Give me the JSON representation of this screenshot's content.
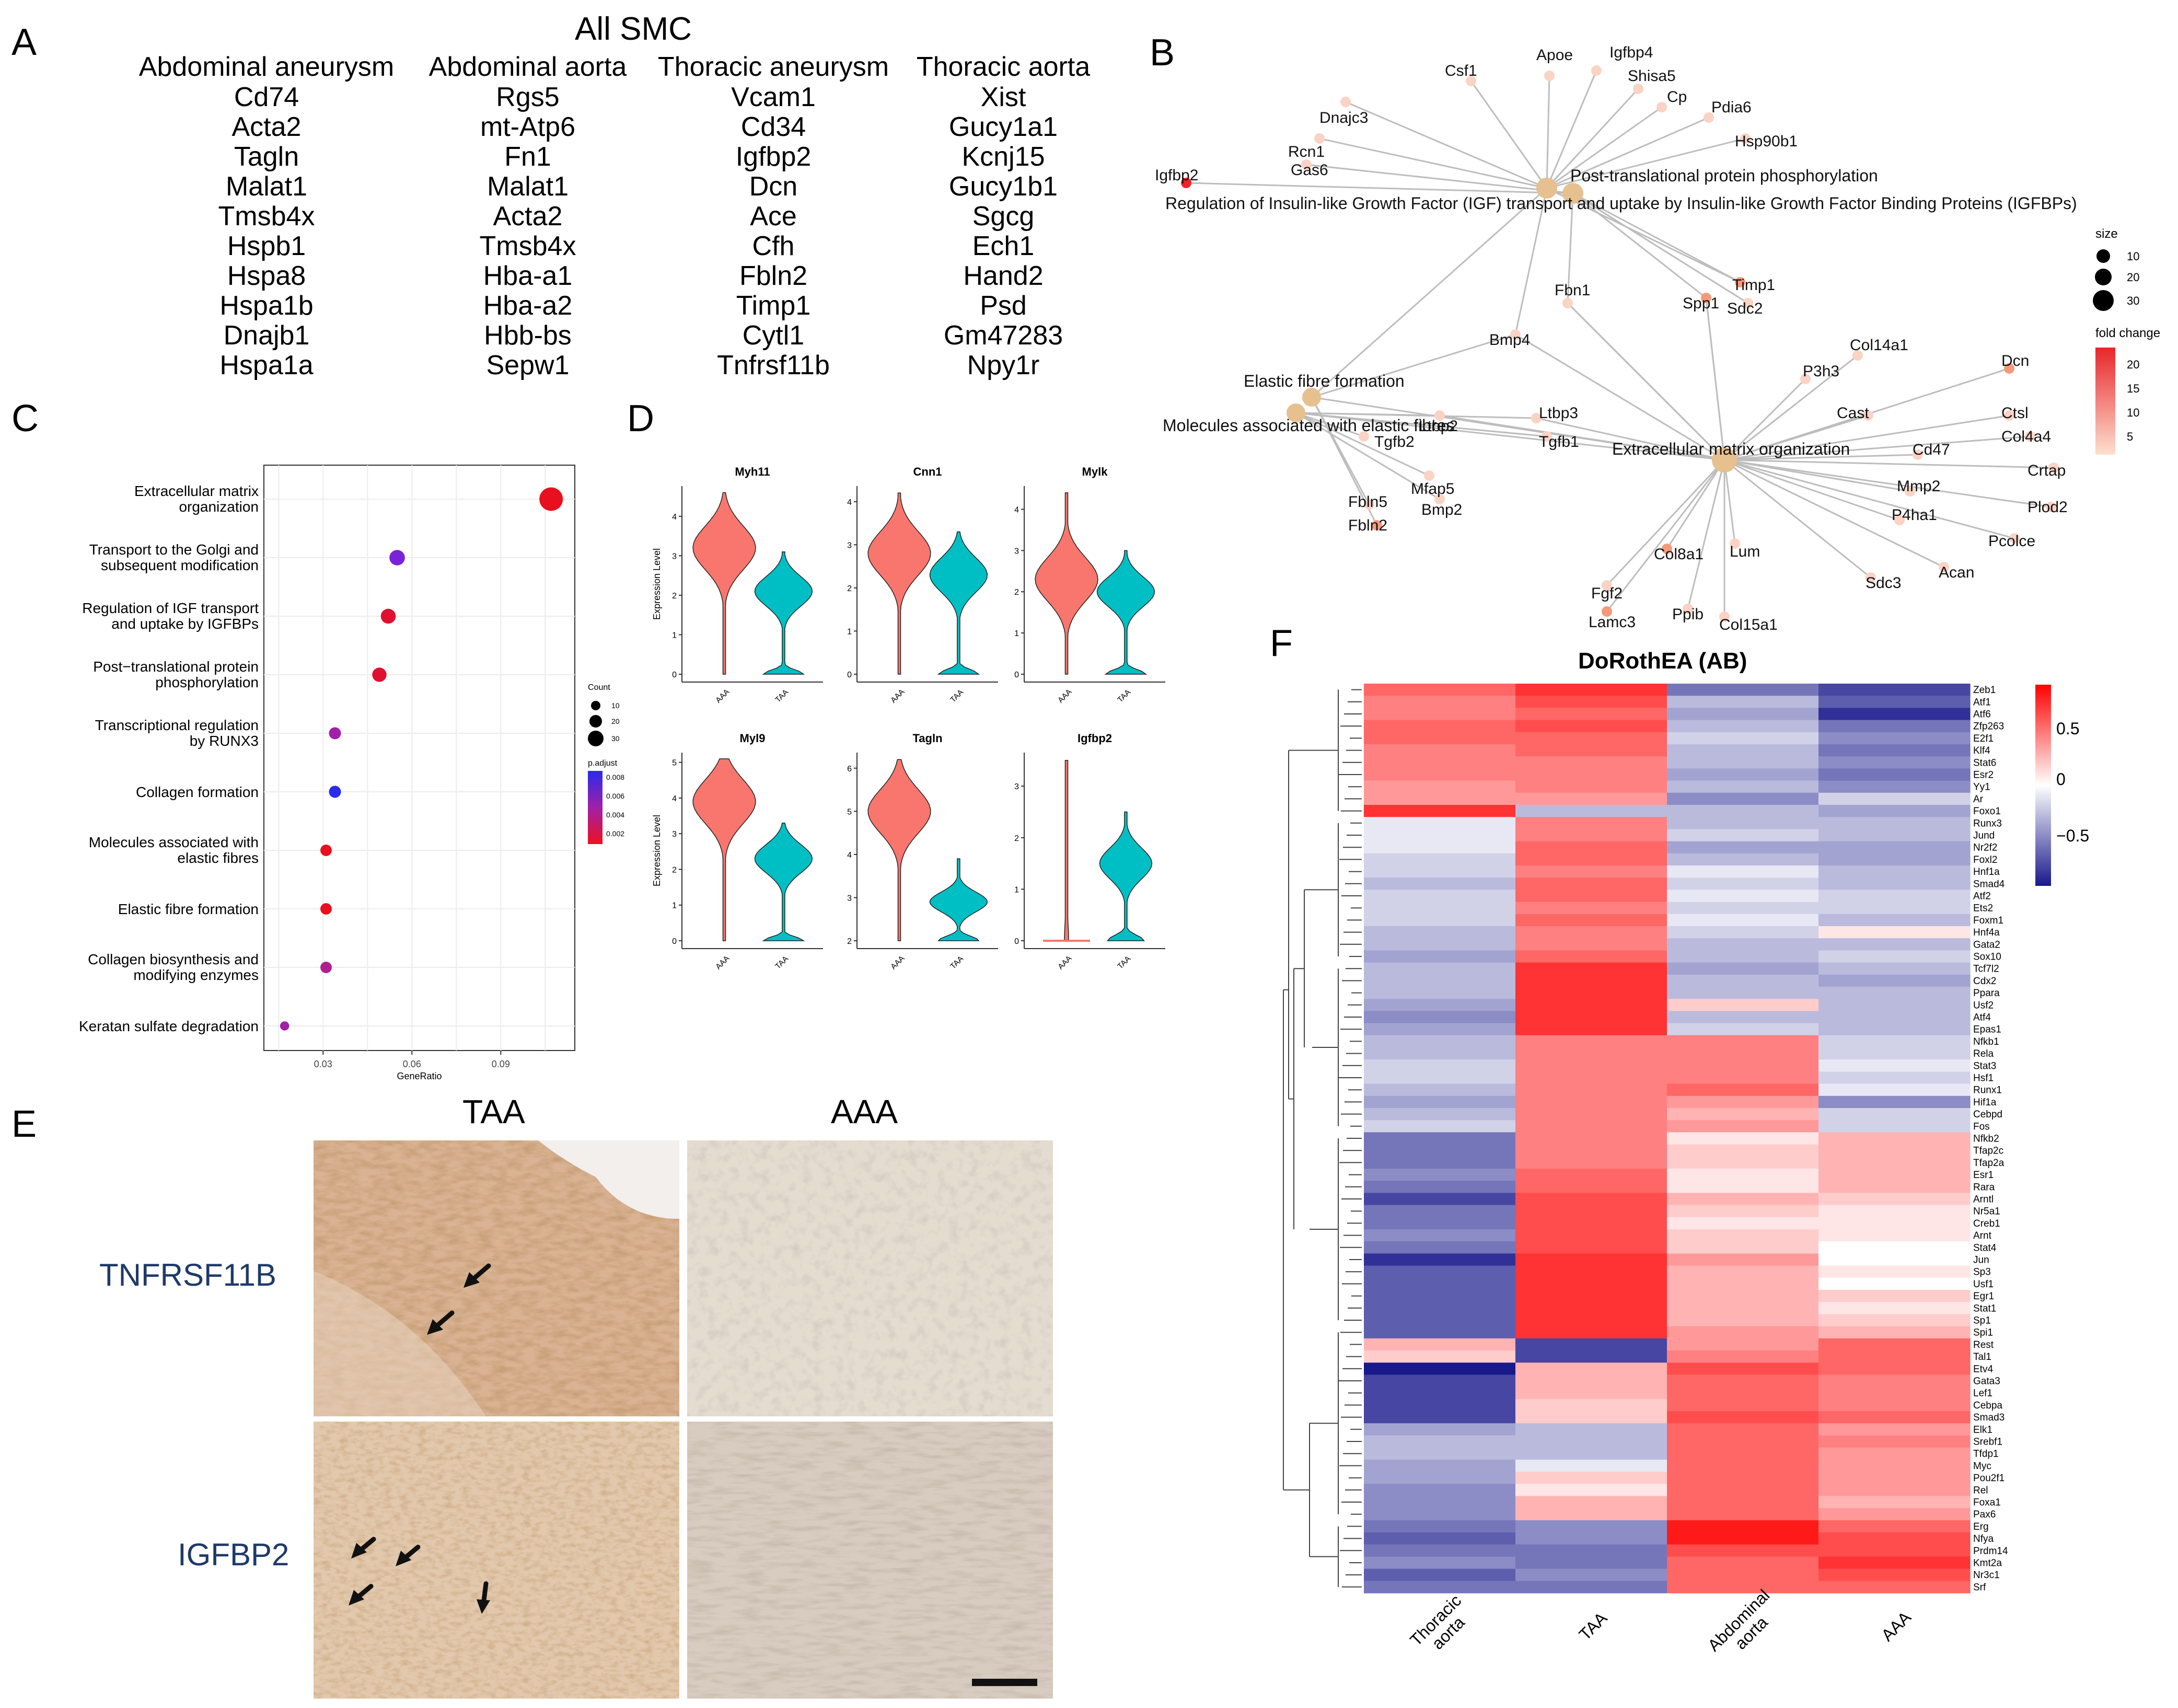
{
  "panelA": {
    "letter": "A",
    "title": "All SMC",
    "columns": [
      {
        "name": "Abdominal aneurysm",
        "genes": [
          "Cd74",
          "Acta2",
          "Tagln",
          "Malat1",
          "Tmsb4x",
          "Hspb1",
          "Hspa8",
          "Hspa1b",
          "Dnajb1",
          "Hspa1a"
        ]
      },
      {
        "name": "Abdominal aorta",
        "genes": [
          "Rgs5",
          "mt-Atp6",
          "Fn1",
          "Malat1",
          "Acta2",
          "Tmsb4x",
          "Hba-a1",
          "Hba-a2",
          "Hbb-bs",
          "Sepw1"
        ]
      },
      {
        "name": "Thoracic aneurysm",
        "genes": [
          "Vcam1",
          "Cd34",
          "Igfbp2",
          "Dcn",
          "Ace",
          "Cfh",
          "Fbln2",
          "Timp1",
          "Cytl1",
          "Tnfrsf11b"
        ]
      },
      {
        "name": "Thoracic aorta",
        "genes": [
          "Xist",
          "Gucy1a1",
          "Kcnj15",
          "Gucy1b1",
          "Sgcg",
          "Ech1",
          "Hand2",
          "Psd",
          "Gm47283",
          "Npy1r"
        ]
      }
    ]
  },
  "panelB": {
    "letter": "B",
    "hubs": [
      "Post-translational protein phosphorylation",
      "Regulation of Insulin-like Growth Factor (IGF) transport and uptake by Insulin-like Growth Factor Binding Proteins (IGFBPs)",
      "Elastic fibre formation",
      "Molecules associated with elastic fibres",
      "Extracellular matrix organization"
    ],
    "genes": [
      "Csf1",
      "Apoe",
      "Igfbp4",
      "Shisa5",
      "Cp",
      "Pdia6",
      "Hsp90b1",
      "Dnajc3",
      "Rcn1",
      "Igfbp2",
      "Gas6",
      "Timp1",
      "Fbn1",
      "Spp1",
      "Sdc2",
      "Bmp4",
      "Ltbp3",
      "Ltbp2",
      "Tgfb2",
      "Tgfb1",
      "Mfap5",
      "Fbln5",
      "Fbln2",
      "Bmp2",
      "P3h3",
      "Col14a1",
      "Dcn",
      "Cast",
      "Ctsl",
      "Cd47",
      "Col4a4",
      "Crtap",
      "Mmp2",
      "P4ha1",
      "Plod2",
      "Pcolce",
      "Acan",
      "Sdc3",
      "Lum",
      "Col8a1",
      "Fgf2",
      "Lamc3",
      "Ppib",
      "Col15a1"
    ],
    "legend": {
      "size_title": "size",
      "size_values": [
        "10",
        "20",
        "30"
      ],
      "fc_title": "fold change",
      "fc_values": [
        "20",
        "15",
        "10",
        "5"
      ],
      "fc_low": "#fde0d0",
      "fc_high": "#e8262a"
    }
  },
  "panelC": {
    "letter": "C",
    "chart_data": {
      "type": "scatter",
      "xlabel": "GeneRatio",
      "xticks": [
        "0.03",
        "0.06",
        "0.09"
      ],
      "xlim": [
        0.01,
        0.115
      ],
      "terms": [
        {
          "label1": "Extracellular matrix",
          "label2": "organization",
          "gene_ratio": 0.107,
          "count": 30,
          "color": "#e8101e"
        },
        {
          "label1": "Transport to the Golgi and",
          "label2": "subsequent modification",
          "gene_ratio": 0.055,
          "count": 16,
          "color": "#7a22d8"
        },
        {
          "label1": "Regulation of IGF transport",
          "label2": "and uptake by IGFBPs",
          "gene_ratio": 0.052,
          "count": 15,
          "color": "#e01030"
        },
        {
          "label1": "Post−translational protein",
          "label2": "phosphorylation",
          "gene_ratio": 0.049,
          "count": 14,
          "color": "#e01030"
        },
        {
          "label1": "Transcriptional regulation",
          "label2": "by RUNX3",
          "gene_ratio": 0.034,
          "count": 10,
          "color": "#a020a8"
        },
        {
          "label1": "Collagen formation",
          "label2": "",
          "gene_ratio": 0.034,
          "count": 10,
          "color": "#2a2aee"
        },
        {
          "label1": "Molecules associated with",
          "label2": "elastic fibres",
          "gene_ratio": 0.031,
          "count": 9,
          "color": "#e8101e"
        },
        {
          "label1": "Elastic fibre formation",
          "label2": "",
          "gene_ratio": 0.031,
          "count": 9,
          "color": "#e8101e"
        },
        {
          "label1": "Collagen biosynthesis and",
          "label2": "modifying enzymes",
          "gene_ratio": 0.031,
          "count": 9,
          "color": "#b0208c"
        },
        {
          "label1": "Keratan sulfate degradation",
          "label2": "",
          "gene_ratio": 0.017,
          "count": 5,
          "color": "#a020a8"
        }
      ],
      "legend_count_title": "Count",
      "legend_count_values": [
        "10",
        "20",
        "30"
      ],
      "legend_padj_title": "p.adjust",
      "legend_padj_values": [
        "0.008",
        "0.006",
        "0.004",
        "0.002"
      ]
    }
  },
  "panelD": {
    "letter": "D",
    "ylabel": "Expression Level",
    "groups": [
      "AAA",
      "TAA"
    ],
    "colors": {
      "AAA": "#f8766d",
      "TAA": "#00bfc4"
    },
    "chart_data": {
      "type": "violin",
      "panels": [
        {
          "gene": "Myh11",
          "ymax": 4.7,
          "yticks": [
            "0",
            "1",
            "2",
            "3",
            "4"
          ],
          "AAA_median": 3.2,
          "TAA_median": 2.1
        },
        {
          "gene": "Cnn1",
          "ymax": 4.3,
          "yticks": [
            "0",
            "1",
            "2",
            "3",
            "4"
          ],
          "AAA_median": 2.8,
          "TAA_median": 2.3
        },
        {
          "gene": "Mylk",
          "ymax": 4.5,
          "yticks": [
            "0",
            "1",
            "2",
            "3",
            "4"
          ],
          "AAA_median": 2.3,
          "TAA_median": 2.0
        },
        {
          "gene": "Myl9",
          "ymax": 5.2,
          "yticks": [
            "0",
            "1",
            "2",
            "3",
            "4",
            "5"
          ],
          "AAA_median": 3.9,
          "TAA_median": 2.3
        },
        {
          "gene": "Tagln",
          "ymax": 6.3,
          "yticks": [
            "2",
            "3",
            "4",
            "5",
            "6"
          ],
          "AAA_median": 5.0,
          "TAA_median": 2.9
        },
        {
          "gene": "Igfbp2",
          "ymax": 3.6,
          "yticks": [
            "0",
            "1",
            "2",
            "3"
          ],
          "AAA_median": 0.0,
          "TAA_median": 1.5
        }
      ]
    }
  },
  "panelE": {
    "letter": "E",
    "col_titles": [
      "TAA",
      "AAA"
    ],
    "row_labels": [
      "TNFRSF11B",
      "IGFBP2"
    ]
  },
  "panelF": {
    "letter": "F",
    "title": "DoRothEA (AB)",
    "columns": [
      "Thoracic aorta",
      "TAA",
      "Abdominal aorta",
      "AAA"
    ],
    "colorbar": [
      "0.5",
      "0",
      "−0.5"
    ],
    "rows": [
      "Zeb1",
      "Atf1",
      "Atf6",
      "Zfp263",
      "E2f1",
      "Klf4",
      "Stat6",
      "Esr2",
      "Yy1",
      "Ar",
      "Foxo1",
      "Runx3",
      "Jund",
      "Nr2f2",
      "Foxl2",
      "Hnf1a",
      "Smad4",
      "Atf2",
      "Ets2",
      "Foxm1",
      "Hnf4a",
      "Gata2",
      "Sox10",
      "Tcf7l2",
      "Cdx2",
      "Ppara",
      "Usf2",
      "Atf4",
      "Epas1",
      "Nfkb1",
      "Rela",
      "Stat3",
      "Hsf1",
      "Runx1",
      "Hif1a",
      "Cebpd",
      "Fos",
      "Nfkb2",
      "Tfap2c",
      "Tfap2a",
      "Esr1",
      "Rara",
      "Arntl",
      "Nr5a1",
      "Creb1",
      "Arnt",
      "Stat4",
      "Jun",
      "Sp3",
      "Usf1",
      "Egr1",
      "Stat1",
      "Sp1",
      "Spi1",
      "Rest",
      "Tal1",
      "Etv4",
      "Gata3",
      "Lef1",
      "Cebpa",
      "Smad3",
      "Elk1",
      "Srebf1",
      "Tfdp1",
      "Myc",
      "Pou2f1",
      "Rel",
      "Foxa1",
      "Pax6",
      "Erg",
      "Nfya",
      "Prdm14",
      "Kmt2a",
      "Nr3c1",
      "Srf"
    ],
    "values": [
      [
        0.6,
        0.8,
        -0.6,
        -0.8
      ],
      [
        0.5,
        0.7,
        -0.3,
        -0.7
      ],
      [
        0.5,
        0.6,
        -0.4,
        -0.9
      ],
      [
        0.6,
        0.7,
        -0.3,
        -0.6
      ],
      [
        0.6,
        0.6,
        -0.2,
        -0.5
      ],
      [
        0.5,
        0.6,
        -0.3,
        -0.6
      ],
      [
        0.5,
        0.5,
        -0.3,
        -0.5
      ],
      [
        0.5,
        0.5,
        -0.4,
        -0.6
      ],
      [
        0.4,
        0.5,
        -0.3,
        -0.5
      ],
      [
        0.4,
        0.4,
        -0.5,
        -0.2
      ],
      [
        0.8,
        -0.3,
        -0.3,
        -0.4
      ],
      [
        -0.1,
        0.5,
        -0.3,
        -0.3
      ],
      [
        -0.1,
        0.5,
        -0.2,
        -0.3
      ],
      [
        -0.1,
        0.6,
        -0.4,
        -0.4
      ],
      [
        -0.2,
        0.6,
        -0.3,
        -0.4
      ],
      [
        -0.2,
        0.5,
        -0.1,
        -0.3
      ],
      [
        -0.3,
        0.6,
        -0.2,
        -0.3
      ],
      [
        -0.2,
        0.6,
        -0.1,
        -0.2
      ],
      [
        -0.2,
        0.5,
        -0.2,
        -0.2
      ],
      [
        -0.2,
        0.6,
        -0.1,
        -0.3
      ],
      [
        -0.3,
        0.5,
        -0.2,
        0.1
      ],
      [
        -0.3,
        0.5,
        -0.3,
        -0.3
      ],
      [
        -0.4,
        0.6,
        -0.3,
        -0.2
      ],
      [
        -0.3,
        0.8,
        -0.4,
        -0.3
      ],
      [
        -0.3,
        0.8,
        -0.3,
        -0.4
      ],
      [
        -0.3,
        0.8,
        -0.3,
        -0.3
      ],
      [
        -0.4,
        0.8,
        0.2,
        -0.3
      ],
      [
        -0.5,
        0.8,
        -0.3,
        -0.3
      ],
      [
        -0.4,
        0.8,
        -0.2,
        -0.3
      ],
      [
        -0.3,
        0.5,
        0.5,
        -0.2
      ],
      [
        -0.3,
        0.5,
        0.5,
        -0.2
      ],
      [
        -0.2,
        0.5,
        0.5,
        -0.1
      ],
      [
        -0.2,
        0.5,
        0.5,
        -0.2
      ],
      [
        -0.3,
        0.5,
        0.6,
        -0.1
      ],
      [
        -0.4,
        0.5,
        0.4,
        -0.5
      ],
      [
        -0.3,
        0.5,
        0.3,
        -0.2
      ],
      [
        -0.2,
        0.5,
        0.4,
        -0.2
      ],
      [
        -0.6,
        0.5,
        0.1,
        0.3
      ],
      [
        -0.6,
        0.5,
        0.2,
        0.3
      ],
      [
        -0.6,
        0.5,
        0.2,
        0.3
      ],
      [
        -0.5,
        0.6,
        0.1,
        0.3
      ],
      [
        -0.6,
        0.6,
        0.1,
        0.3
      ],
      [
        -0.8,
        0.7,
        0.3,
        0.2
      ],
      [
        -0.6,
        0.7,
        0.2,
        0.1
      ],
      [
        -0.6,
        0.7,
        0.1,
        0.1
      ],
      [
        -0.5,
        0.7,
        0.2,
        0.1
      ],
      [
        -0.6,
        0.7,
        0.2,
        0.0
      ],
      [
        -0.9,
        0.8,
        0.4,
        0.0
      ],
      [
        -0.7,
        0.8,
        0.3,
        0.1
      ],
      [
        -0.7,
        0.8,
        0.3,
        0.0
      ],
      [
        -0.7,
        0.8,
        0.3,
        0.2
      ],
      [
        -0.7,
        0.8,
        0.3,
        0.1
      ],
      [
        -0.7,
        0.8,
        0.3,
        0.2
      ],
      [
        -0.7,
        0.8,
        0.4,
        0.3
      ],
      [
        0.3,
        -0.8,
        0.4,
        0.6
      ],
      [
        0.2,
        -0.8,
        0.5,
        0.6
      ],
      [
        -1.0,
        0.3,
        0.7,
        0.6
      ],
      [
        -0.8,
        0.3,
        0.6,
        0.5
      ],
      [
        -0.8,
        0.3,
        0.6,
        0.5
      ],
      [
        -0.8,
        0.2,
        0.6,
        0.5
      ],
      [
        -0.8,
        0.2,
        0.7,
        0.6
      ],
      [
        -0.4,
        -0.3,
        0.6,
        0.4
      ],
      [
        -0.3,
        -0.3,
        0.6,
        0.5
      ],
      [
        -0.3,
        -0.3,
        0.6,
        0.4
      ],
      [
        -0.4,
        -0.1,
        0.6,
        0.4
      ],
      [
        -0.4,
        0.2,
        0.6,
        0.4
      ],
      [
        -0.5,
        0.1,
        0.6,
        0.4
      ],
      [
        -0.5,
        0.3,
        0.6,
        0.3
      ],
      [
        -0.5,
        0.3,
        0.6,
        0.4
      ],
      [
        -0.6,
        -0.5,
        0.9,
        0.6
      ],
      [
        -0.7,
        -0.5,
        0.9,
        0.7
      ],
      [
        -0.6,
        -0.6,
        0.7,
        0.7
      ],
      [
        -0.5,
        -0.6,
        0.6,
        0.8
      ],
      [
        -0.7,
        -0.5,
        0.6,
        0.7
      ],
      [
        -0.6,
        -0.6,
        0.6,
        0.6
      ]
    ]
  }
}
